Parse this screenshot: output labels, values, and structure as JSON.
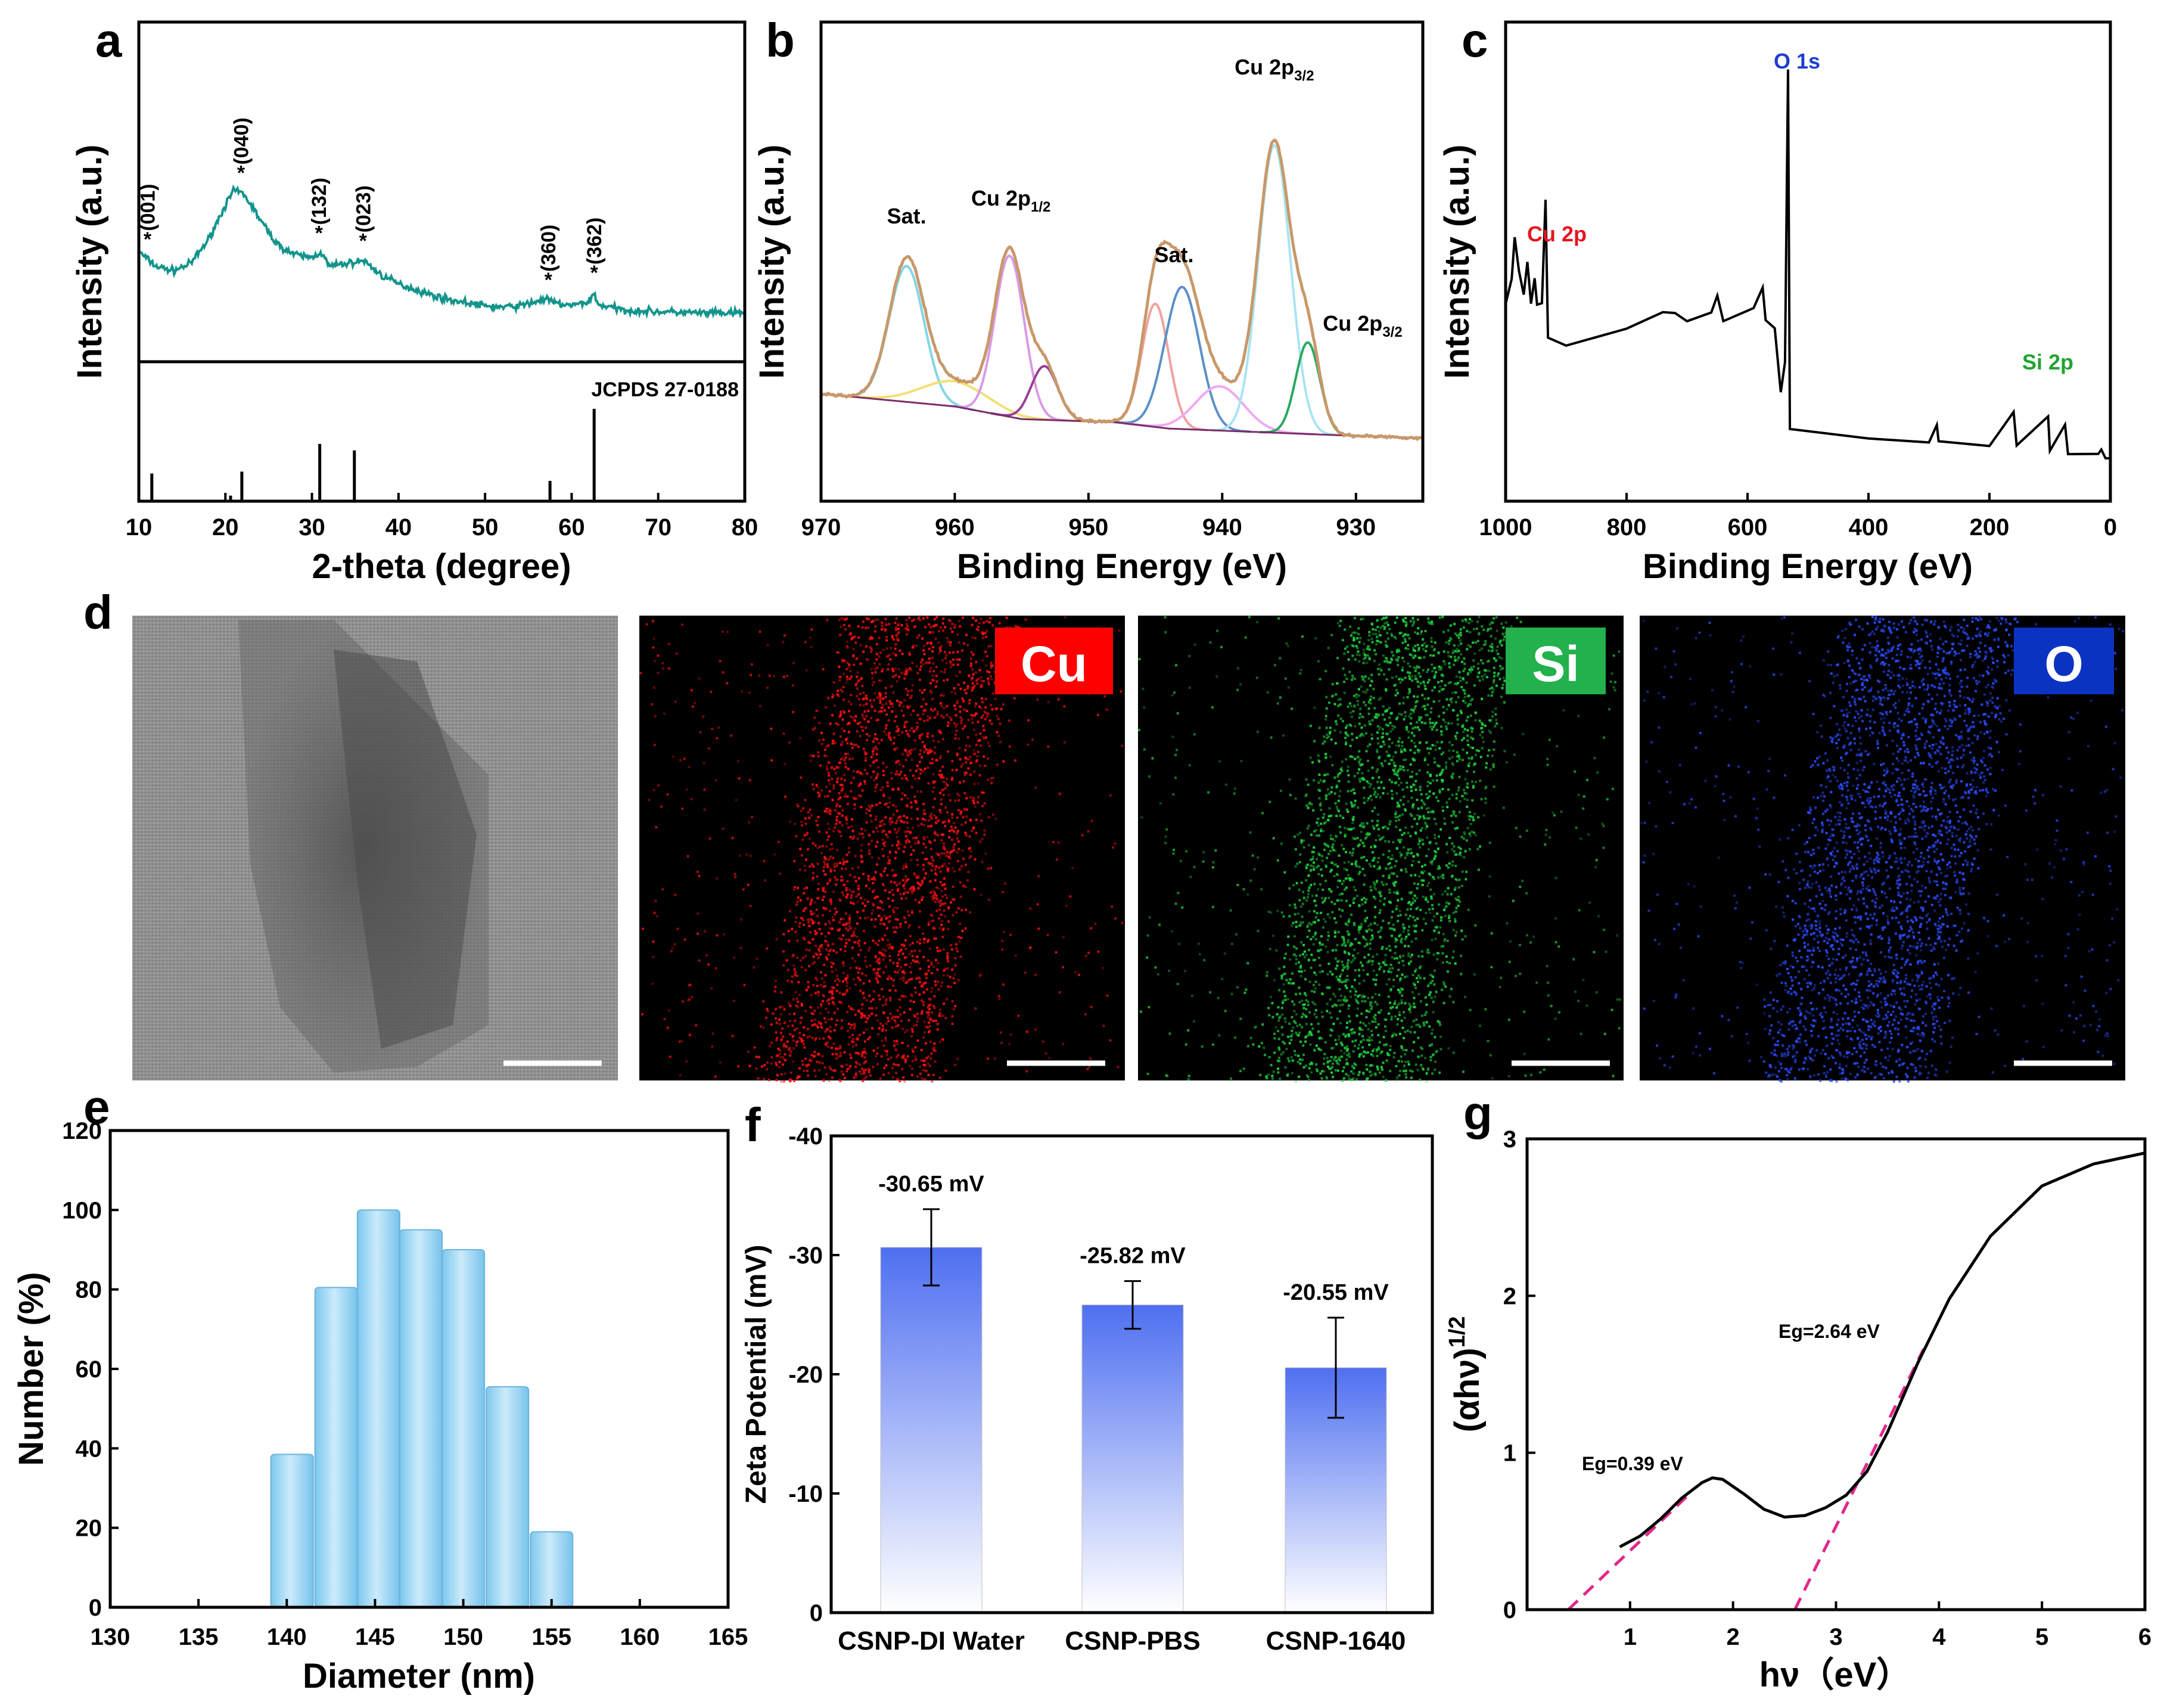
{
  "panel_letters": {
    "a": "a",
    "b": "b",
    "c": "c",
    "d": "d",
    "e": "e",
    "f": "f",
    "g": "g"
  },
  "chart_data": [
    {
      "id": "a",
      "type": "line",
      "title": "",
      "xlabel": "2-theta (degree)",
      "ylabel": "Intensity (a.u.)",
      "xlim": [
        10,
        80
      ],
      "xticks": [
        10,
        20,
        30,
        40,
        50,
        60,
        70,
        80
      ],
      "color": "#12948c",
      "series": [
        {
          "name": "XRD pattern",
          "x": [
            10,
            12,
            14,
            16,
            18,
            20,
            21,
            22,
            23,
            24,
            26,
            28,
            30,
            31,
            32,
            34,
            36,
            38,
            40,
            42,
            44,
            46,
            48,
            50,
            52,
            54,
            56,
            57,
            58,
            60,
            62,
            62.6,
            63,
            66,
            70,
            75,
            80
          ],
          "y": [
            0.5,
            0.4,
            0.37,
            0.42,
            0.58,
            0.82,
            0.92,
            0.9,
            0.82,
            0.72,
            0.55,
            0.48,
            0.46,
            0.5,
            0.4,
            0.42,
            0.44,
            0.34,
            0.28,
            0.24,
            0.2,
            0.17,
            0.15,
            0.13,
            0.12,
            0.13,
            0.16,
            0.18,
            0.15,
            0.13,
            0.16,
            0.22,
            0.14,
            0.1,
            0.09,
            0.08,
            0.08
          ]
        }
      ],
      "peak_labels": [
        {
          "x": 11.0,
          "label": "(001)"
        },
        {
          "x": 21.8,
          "label": "(040)"
        },
        {
          "x": 30.8,
          "label": "(132)"
        },
        {
          "x": 35.9,
          "label": "(023)"
        },
        {
          "x": 57.3,
          "label": "(360)"
        },
        {
          "x": 62.6,
          "label": "(362)"
        }
      ],
      "reference": {
        "name": "JCPDS 27-0188",
        "lines": [
          {
            "x": 11.5,
            "h": 0.3
          },
          {
            "x": 20.6,
            "h": 0.06
          },
          {
            "x": 21.9,
            "h": 0.32
          },
          {
            "x": 30.9,
            "h": 0.62
          },
          {
            "x": 34.9,
            "h": 0.55
          },
          {
            "x": 57.5,
            "h": 0.22
          },
          {
            "x": 62.6,
            "h": 1.0
          }
        ]
      }
    },
    {
      "id": "b",
      "type": "line",
      "title": "",
      "xlabel": "Binding Energy (eV)",
      "ylabel": "Intensity (a.u.)",
      "xlim": [
        970,
        925
      ],
      "xticks": [
        970,
        960,
        950,
        940,
        930
      ],
      "color": "#c8986a",
      "baseline": [
        [
          970,
          0.14
        ],
        [
          960,
          0.1
        ],
        [
          955,
          0.06
        ],
        [
          948,
          0.05
        ],
        [
          944,
          0.03
        ],
        [
          938,
          0.02
        ],
        [
          932,
          0.01
        ],
        [
          925,
          0.0
        ]
      ],
      "peaks": [
        {
          "center": 963.6,
          "height": 0.43,
          "width": 1.3,
          "color": "#7fd6e6"
        },
        {
          "center": 960.0,
          "height": 0.08,
          "width": 2.5,
          "color": "#f0e070"
        },
        {
          "center": 955.9,
          "height": 0.51,
          "width": 1.1,
          "color": "#d89ae8"
        },
        {
          "center": 953.3,
          "height": 0.17,
          "width": 1.0,
          "color": "#9a3f96"
        },
        {
          "center": 945.0,
          "height": 0.39,
          "width": 1.0,
          "color": "#f2a0a0"
        },
        {
          "center": 943.0,
          "height": 0.45,
          "width": 1.3,
          "color": "#5a90c8"
        },
        {
          "center": 940.2,
          "height": 0.14,
          "width": 1.8,
          "color": "#f0a8f0"
        },
        {
          "center": 936.1,
          "height": 0.91,
          "width": 1.2,
          "color": "#a8e4f0"
        },
        {
          "center": 933.6,
          "height": 0.29,
          "width": 0.9,
          "color": "#28a860"
        }
      ],
      "labels": [
        {
          "x": 963.6,
          "text": "Sat.",
          "sub": ""
        },
        {
          "x": 956.0,
          "text": "Cu 2p",
          "sub": "1/2"
        },
        {
          "x": 944.0,
          "text": "Sat.",
          "sub": ""
        },
        {
          "x": 936.1,
          "text": "Cu 2p",
          "sub": "3/2"
        },
        {
          "x": 933.0,
          "text": "Cu 2p",
          "sub": "3/2"
        }
      ]
    },
    {
      "id": "c",
      "type": "line",
      "title": "",
      "xlabel": "Binding Energy (eV)",
      "ylabel": "Intensity (a.u.)",
      "xlim": [
        1000,
        0
      ],
      "xticks": [
        1000,
        800,
        600,
        400,
        200,
        0
      ],
      "color": "#000000",
      "survey_points": [
        [
          1000,
          0.4
        ],
        [
          990,
          0.46
        ],
        [
          985,
          0.56
        ],
        [
          978,
          0.48
        ],
        [
          970,
          0.42
        ],
        [
          964,
          0.5
        ],
        [
          958,
          0.4
        ],
        [
          952,
          0.46
        ],
        [
          948,
          0.4
        ],
        [
          940,
          0.4
        ],
        [
          934,
          0.65
        ],
        [
          930,
          0.32
        ],
        [
          900,
          0.3
        ],
        [
          800,
          0.34
        ],
        [
          740,
          0.38
        ],
        [
          720,
          0.38
        ],
        [
          700,
          0.36
        ],
        [
          660,
          0.38
        ],
        [
          650,
          0.42
        ],
        [
          640,
          0.36
        ],
        [
          590,
          0.39
        ],
        [
          575,
          0.44
        ],
        [
          570,
          0.36
        ],
        [
          555,
          0.34
        ],
        [
          545,
          0.19
        ],
        [
          538,
          0.26
        ],
        [
          533,
          0.96
        ],
        [
          530,
          0.1
        ],
        [
          400,
          0.08
        ],
        [
          300,
          0.07
        ],
        [
          287,
          0.11
        ],
        [
          284,
          0.07
        ],
        [
          200,
          0.06
        ],
        [
          160,
          0.14
        ],
        [
          155,
          0.06
        ],
        [
          103,
          0.13
        ],
        [
          100,
          0.05
        ],
        [
          75,
          0.11
        ],
        [
          70,
          0.04
        ],
        [
          20,
          0.04
        ],
        [
          15,
          0.05
        ],
        [
          8,
          0.03
        ],
        [
          0,
          0.03
        ]
      ],
      "labels": [
        {
          "x": 950,
          "text": "Cu 2p",
          "color": "#e4151f"
        },
        {
          "x": 533,
          "text": "O 1s",
          "color": "#1c3fd0"
        },
        {
          "x": 153,
          "text": "Si 2p",
          "color": "#22a431"
        }
      ]
    },
    {
      "id": "e",
      "type": "bar",
      "title": "",
      "xlabel": "Diameter (nm)",
      "ylabel": "Number (%)",
      "xlim": [
        130,
        165
      ],
      "ylim": [
        0,
        120
      ],
      "xticks": [
        130,
        135,
        140,
        145,
        150,
        155,
        160,
        165
      ],
      "yticks": [
        0,
        20,
        40,
        60,
        80,
        100,
        120
      ],
      "bar_width": 2.4,
      "x": [
        140.3,
        142.8,
        145.2,
        147.6,
        150.0,
        152.5,
        155.0
      ],
      "values": [
        38.5,
        80.5,
        100,
        95,
        90,
        55.5,
        19
      ]
    },
    {
      "id": "f",
      "type": "bar",
      "title": "",
      "xlabel": "",
      "ylabel": "Zeta Potential (mV)",
      "ylim": [
        0,
        -40
      ],
      "yticks": [
        0,
        -10,
        -20,
        -30,
        -40
      ],
      "categories": [
        "CSNP-DI Water",
        "CSNP-PBS",
        "CSNP-1640"
      ],
      "values": [
        -30.65,
        -25.82,
        -20.55
      ],
      "errors": [
        3.2,
        2.0,
        4.2
      ],
      "value_labels": [
        "-30.65 mV",
        "-25.82 mV",
        "-20.55 mV"
      ]
    },
    {
      "id": "g",
      "type": "line",
      "title": "",
      "xlabel": "hν（eV）",
      "ylabel": "(αhν)",
      "ylabel_sup": "1/2",
      "xlim": [
        0,
        6
      ],
      "ylim": [
        0,
        3
      ],
      "xticks": [
        1,
        2,
        3,
        4,
        5,
        6
      ],
      "yticks": [
        0,
        1,
        2,
        3
      ],
      "series": [
        {
          "name": "Tauc plot",
          "x": [
            0.9,
            1.1,
            1.3,
            1.5,
            1.7,
            1.8,
            1.9,
            2.1,
            2.3,
            2.5,
            2.7,
            2.9,
            3.1,
            3.3,
            3.5,
            3.8,
            4.1,
            4.5,
            5.0,
            5.5,
            6.0
          ],
          "y": [
            0.4,
            0.47,
            0.58,
            0.71,
            0.81,
            0.84,
            0.83,
            0.74,
            0.64,
            0.59,
            0.6,
            0.65,
            0.73,
            0.88,
            1.13,
            1.58,
            1.98,
            2.38,
            2.7,
            2.84,
            2.91
          ]
        }
      ],
      "tangents": [
        {
          "x": [
            0.4,
            1.55
          ],
          "y": [
            0.0,
            0.72
          ],
          "label": "Eg=0.39 eV"
        },
        {
          "x": [
            2.6,
            3.85
          ],
          "y": [
            0.0,
            1.66
          ],
          "label": "Eg=2.64 eV"
        }
      ]
    }
  ],
  "mapping": {
    "tags": [
      {
        "text": "Cu",
        "color": "#ff0000"
      },
      {
        "text": "Si",
        "color": "#22b14c"
      },
      {
        "text": "O",
        "color": "#0a33c4"
      }
    ],
    "dot_colors": [
      "#ff1010",
      "#20d040",
      "#2a4bff"
    ]
  }
}
